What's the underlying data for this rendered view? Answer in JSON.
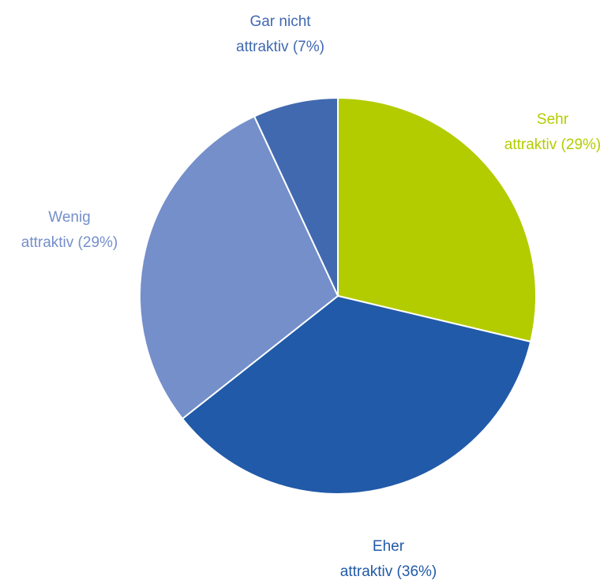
{
  "chart_data": {
    "type": "pie",
    "legend": "none",
    "start_angle_deg": 0,
    "direction": "clockwise",
    "slices": [
      {
        "label_lines": [
          "Sehr",
          "attraktiv (29%)"
        ],
        "value": 29,
        "color": "#b3cc00"
      },
      {
        "label_lines": [
          "Eher",
          "attraktiv (36%)"
        ],
        "value": 36,
        "color": "#215aa8"
      },
      {
        "label_lines": [
          "Wenig",
          "attraktiv (29%)"
        ],
        "value": 29,
        "color": "#748fca"
      },
      {
        "label_lines": [
          "Gar nicht",
          "attraktiv (7%)"
        ],
        "value": 7,
        "color": "#4169b0"
      }
    ]
  }
}
